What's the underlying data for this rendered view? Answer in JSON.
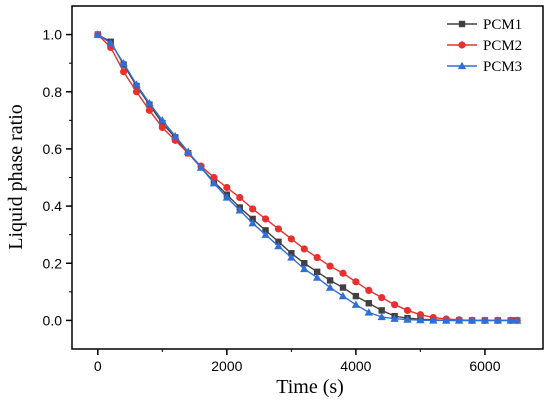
{
  "chart_data": {
    "type": "line",
    "title": "",
    "xlabel": "Time (s)",
    "ylabel": "Liquid phase ratio",
    "xlim": [
      -400,
      6900
    ],
    "ylim": [
      -0.1,
      1.1
    ],
    "xticks": [
      0,
      2000,
      4000,
      6000
    ],
    "yticks": [
      0.0,
      0.2,
      0.4,
      0.6,
      0.8,
      1.0
    ],
    "xtick_labels": [
      "0",
      "2000",
      "4000",
      "6000"
    ],
    "ytick_labels": [
      "0.0",
      "0.2",
      "0.4",
      "0.6",
      "0.8",
      "1.0"
    ],
    "grid": false,
    "legend_position": "top-right",
    "x": [
      0,
      200,
      400,
      600,
      800,
      1000,
      1200,
      1400,
      1600,
      1800,
      2000,
      2200,
      2400,
      2600,
      2800,
      3000,
      3200,
      3400,
      3600,
      3800,
      4000,
      4200,
      4400,
      4600,
      4800,
      5000,
      5200,
      5400,
      5600,
      5800,
      6000,
      6200,
      6400,
      6500
    ],
    "series": [
      {
        "name": "PCM1",
        "color": "#404040",
        "marker": "square",
        "values": [
          1.0,
          0.975,
          0.895,
          0.82,
          0.755,
          0.69,
          0.64,
          0.585,
          0.535,
          0.485,
          0.44,
          0.395,
          0.355,
          0.315,
          0.275,
          0.235,
          0.2,
          0.17,
          0.14,
          0.115,
          0.085,
          0.06,
          0.035,
          0.015,
          0.008,
          0.004,
          0.002,
          0.0,
          0.0,
          0.0,
          0.0,
          0.0,
          0.0,
          0.0
        ]
      },
      {
        "name": "PCM2",
        "color": "#e8312f",
        "marker": "circle",
        "values": [
          1.0,
          0.955,
          0.87,
          0.8,
          0.735,
          0.675,
          0.63,
          0.585,
          0.54,
          0.5,
          0.465,
          0.43,
          0.39,
          0.355,
          0.32,
          0.285,
          0.25,
          0.22,
          0.19,
          0.165,
          0.135,
          0.105,
          0.08,
          0.055,
          0.035,
          0.02,
          0.01,
          0.005,
          0.002,
          0.0,
          0.0,
          0.0,
          0.0,
          0.0
        ]
      },
      {
        "name": "PCM3",
        "color": "#2f6fd6",
        "marker": "triangle",
        "values": [
          1.0,
          0.97,
          0.9,
          0.825,
          0.76,
          0.7,
          0.645,
          0.59,
          0.535,
          0.48,
          0.43,
          0.385,
          0.34,
          0.3,
          0.26,
          0.22,
          0.18,
          0.15,
          0.115,
          0.085,
          0.055,
          0.028,
          0.012,
          0.006,
          0.003,
          0.001,
          0.0,
          0.0,
          0.0,
          0.0,
          0.0,
          0.0,
          0.0,
          0.0
        ]
      }
    ]
  }
}
